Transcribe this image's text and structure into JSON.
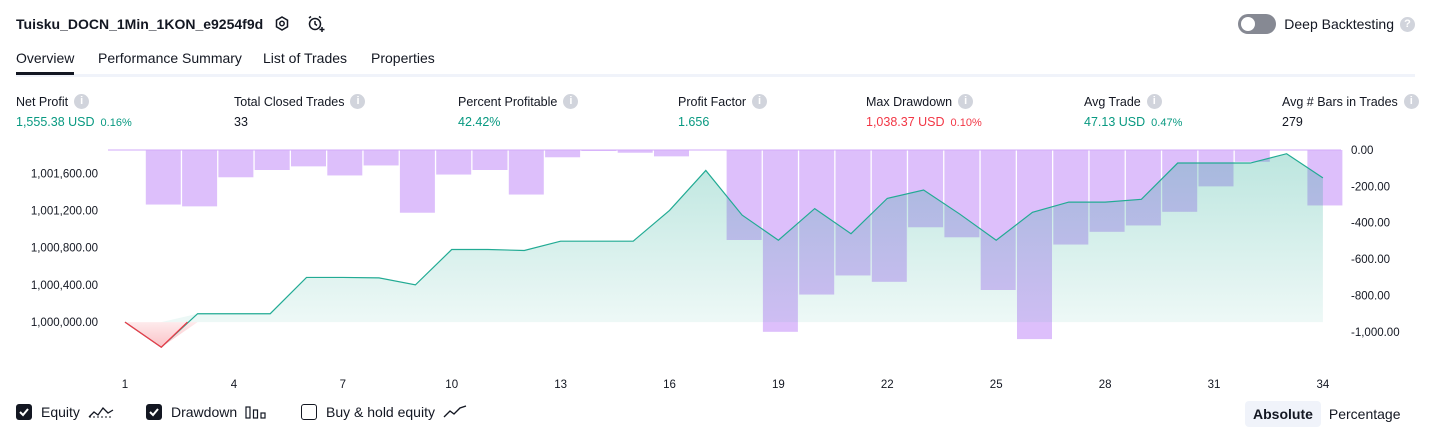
{
  "header": {
    "strategy_name": "Tuisku_DOCN_1Min_1KON_e9254f9d",
    "deep_backtesting_label": "Deep Backtesting",
    "deep_backtesting_enabled": false
  },
  "tabs": [
    {
      "label": "Overview",
      "active": true
    },
    {
      "label": "Performance Summary",
      "active": false
    },
    {
      "label": "List of Trades",
      "active": false
    },
    {
      "label": "Properties",
      "active": false
    }
  ],
  "metrics": [
    {
      "label": "Net Profit",
      "value": "1,555.38 USD",
      "sub": "0.16%",
      "color": "#089981"
    },
    {
      "label": "Total Closed Trades",
      "value": "33",
      "sub": "",
      "color": "#131722"
    },
    {
      "label": "Percent Profitable",
      "value": "42.42%",
      "sub": "",
      "color": "#089981"
    },
    {
      "label": "Profit Factor",
      "value": "1.656",
      "sub": "",
      "color": "#089981"
    },
    {
      "label": "Max Drawdown",
      "value": "1,038.37 USD",
      "sub": "0.10%",
      "color": "#f23645"
    },
    {
      "label": "Avg Trade",
      "value": "47.13 USD",
      "sub": "0.47%",
      "color": "#089981"
    },
    {
      "label": "Avg # Bars in Trades",
      "value": "279",
      "sub": "",
      "color": "#131722"
    }
  ],
  "chart_data": {
    "type": "line+bar",
    "x": [
      1,
      2,
      3,
      4,
      5,
      6,
      7,
      8,
      9,
      10,
      11,
      12,
      13,
      14,
      15,
      16,
      17,
      18,
      19,
      20,
      21,
      22,
      23,
      24,
      25,
      26,
      27,
      28,
      29,
      30,
      31,
      32,
      33,
      34
    ],
    "x_ticks": [
      "1",
      "4",
      "7",
      "10",
      "13",
      "16",
      "19",
      "22",
      "25",
      "28",
      "31",
      "34"
    ],
    "left_axis": {
      "ticks": [
        "1,000,000.00",
        "1,000,400.00",
        "1,000,800.00",
        "1,001,200.00",
        "1,001,600.00"
      ],
      "ylim": [
        999700,
        1001850
      ]
    },
    "right_axis": {
      "ticks": [
        "0.00",
        "-200.00",
        "-400.00",
        "-600.00",
        "-800.00",
        "-1,000.00"
      ],
      "ylim": [
        -1100,
        0
      ]
    },
    "series": [
      {
        "name": "Equity",
        "axis": "left",
        "values": [
          1000000,
          999730,
          1000090,
          1000090,
          1000090,
          1000480,
          1000480,
          1000475,
          1000400,
          1000780,
          1000780,
          1000770,
          1000870,
          1000870,
          1000870,
          1001200,
          1001630,
          1001150,
          1000880,
          1001220,
          1000950,
          1001330,
          1001420,
          1001160,
          1000880,
          1001180,
          1001290,
          1001290,
          1001320,
          1001710,
          1001710,
          1001710,
          1001810,
          1001550
        ]
      },
      {
        "name": "Drawdown",
        "axis": "right",
        "values": [
          0,
          -300,
          -310,
          -150,
          -110,
          -90,
          -140,
          -85,
          -345,
          -135,
          -110,
          -245,
          -40,
          -5,
          -15,
          -35,
          0,
          -495,
          -1000,
          -795,
          -690,
          -725,
          -425,
          -480,
          -770,
          -1040,
          -520,
          -450,
          -415,
          -340,
          -200,
          -65,
          0,
          -305
        ]
      }
    ],
    "legend": [
      {
        "label": "Equity",
        "checked": true,
        "icon": "equity-line-icon"
      },
      {
        "label": "Drawdown",
        "checked": true,
        "icon": "drawdown-bars-icon"
      },
      {
        "label": "Buy & hold equity",
        "checked": false,
        "icon": "buy-hold-line-icon"
      }
    ],
    "colors": {
      "equity_line": "#22ab94",
      "equity_fill": "#22ab94",
      "equity_below": "#f23645",
      "drawdown_bar": "#d1aafa"
    }
  },
  "view_modes": [
    {
      "label": "Absolute",
      "active": true
    },
    {
      "label": "Percentage",
      "active": false
    }
  ]
}
